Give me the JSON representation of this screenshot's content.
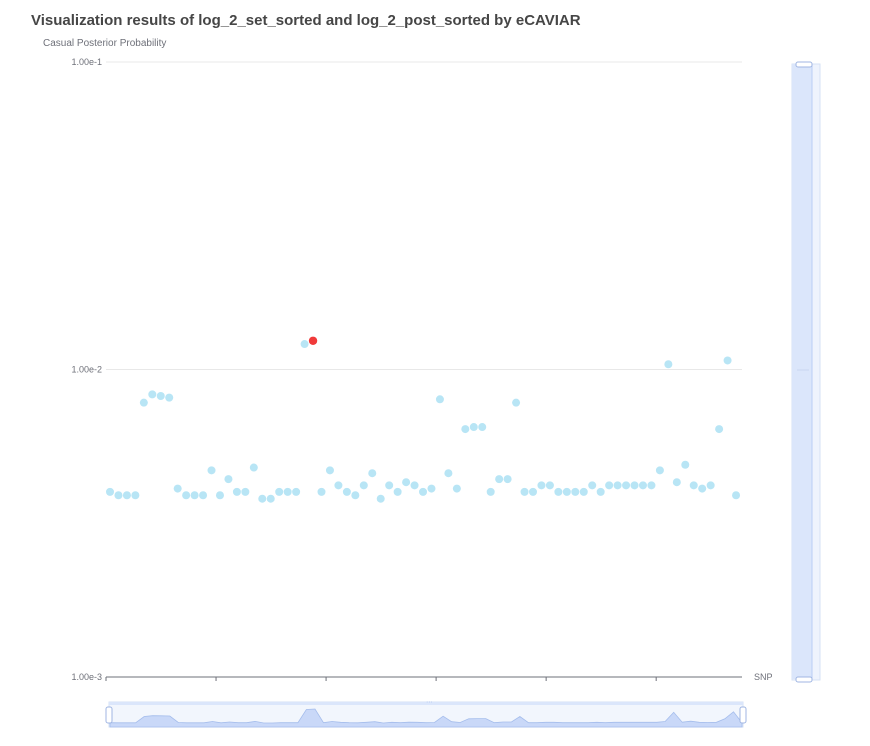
{
  "chart_data": {
    "type": "scatter",
    "title": "Visualization results of log_2_set_sorted and log_2_post_sorted by eCAVIAR",
    "ylabel": "Casual Posterior Probability",
    "xlabel": "SNP",
    "y_scale": "log",
    "ylim": [
      0.001,
      0.1
    ],
    "y_tick_labels": [
      "1.00e-1",
      "1.00e-2",
      "1.00e-3"
    ],
    "y_ticks": [
      0.1,
      0.01,
      0.001
    ],
    "grid": true,
    "colors": {
      "normal": "#b8e5f5",
      "highlight": "#f03a3a",
      "axis": "#6e7079",
      "grid": "#e8e8e8",
      "zoom_fill": "#dbe6fb",
      "zoom_border": "#b9cdf5"
    },
    "values": [
      0.004,
      0.0039,
      0.0039,
      0.0039,
      0.0078,
      0.0083,
      0.0082,
      0.0081,
      0.0041,
      0.0039,
      0.0039,
      0.0039,
      0.0047,
      0.0039,
      0.0044,
      0.004,
      0.004,
      0.0048,
      0.0038,
      0.0038,
      0.004,
      0.004,
      0.004,
      0.0121,
      0.0124,
      0.004,
      0.0047,
      0.0042,
      0.004,
      0.0039,
      0.0042,
      0.0046,
      0.0038,
      0.0042,
      0.004,
      0.0043,
      0.0042,
      0.004,
      0.0041,
      0.008,
      0.0046,
      0.0041,
      0.0064,
      0.0065,
      0.0065,
      0.004,
      0.0044,
      0.0044,
      0.0078,
      0.004,
      0.004,
      0.0042,
      0.0042,
      0.004,
      0.004,
      0.004,
      0.004,
      0.0042,
      0.004,
      0.0042,
      0.0042,
      0.0042,
      0.0042,
      0.0042,
      0.0042,
      0.0047,
      0.0104,
      0.0043,
      0.0049,
      0.0042,
      0.0041,
      0.0042,
      0.0064,
      0.0107,
      0.0039
    ],
    "highlight_index": 24
  }
}
